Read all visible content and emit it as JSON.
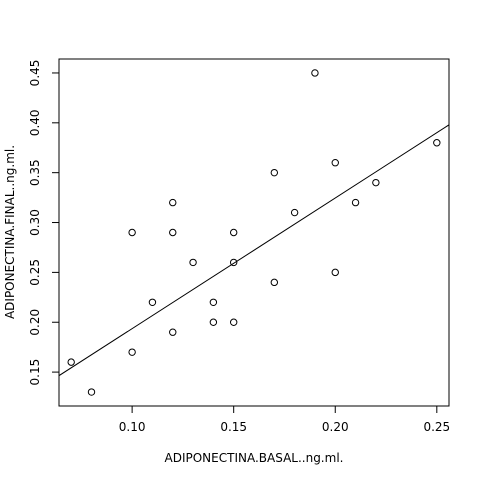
{
  "chart_data": {
    "type": "scatter",
    "title": "",
    "xlabel": "ADIPONECTINA.BASAL..ng.ml.",
    "ylabel": "ADIPONECTINA.FINAL..ng.ml.",
    "xlim": [
      0.064,
      0.256
    ],
    "ylim": [
      0.116,
      0.464
    ],
    "xticks": [
      0.1,
      0.15,
      0.2,
      0.25
    ],
    "xtick_labels": [
      "0.10",
      "0.15",
      "0.20",
      "0.25"
    ],
    "yticks": [
      0.15,
      0.2,
      0.25,
      0.3,
      0.35,
      0.4,
      0.45
    ],
    "ytick_labels": [
      "0.15",
      "0.20",
      "0.25",
      "0.30",
      "0.35",
      "0.40",
      "0.45"
    ],
    "grid": false,
    "points": [
      {
        "x": 0.07,
        "y": 0.16
      },
      {
        "x": 0.08,
        "y": 0.13
      },
      {
        "x": 0.1,
        "y": 0.29
      },
      {
        "x": 0.1,
        "y": 0.17
      },
      {
        "x": 0.11,
        "y": 0.22
      },
      {
        "x": 0.12,
        "y": 0.32
      },
      {
        "x": 0.12,
        "y": 0.29
      },
      {
        "x": 0.12,
        "y": 0.19
      },
      {
        "x": 0.13,
        "y": 0.26
      },
      {
        "x": 0.14,
        "y": 0.22
      },
      {
        "x": 0.14,
        "y": 0.2
      },
      {
        "x": 0.15,
        "y": 0.29
      },
      {
        "x": 0.15,
        "y": 0.26
      },
      {
        "x": 0.15,
        "y": 0.2
      },
      {
        "x": 0.17,
        "y": 0.35
      },
      {
        "x": 0.17,
        "y": 0.24
      },
      {
        "x": 0.18,
        "y": 0.31
      },
      {
        "x": 0.19,
        "y": 0.45
      },
      {
        "x": 0.2,
        "y": 0.36
      },
      {
        "x": 0.2,
        "y": 0.25
      },
      {
        "x": 0.21,
        "y": 0.32
      },
      {
        "x": 0.22,
        "y": 0.34
      },
      {
        "x": 0.25,
        "y": 0.38
      }
    ],
    "regression_line": {
      "intercept": 0.0626,
      "slope": 1.31
    },
    "colors": {
      "points": "#000000",
      "line": "#000000",
      "background": "#ffffff"
    }
  }
}
